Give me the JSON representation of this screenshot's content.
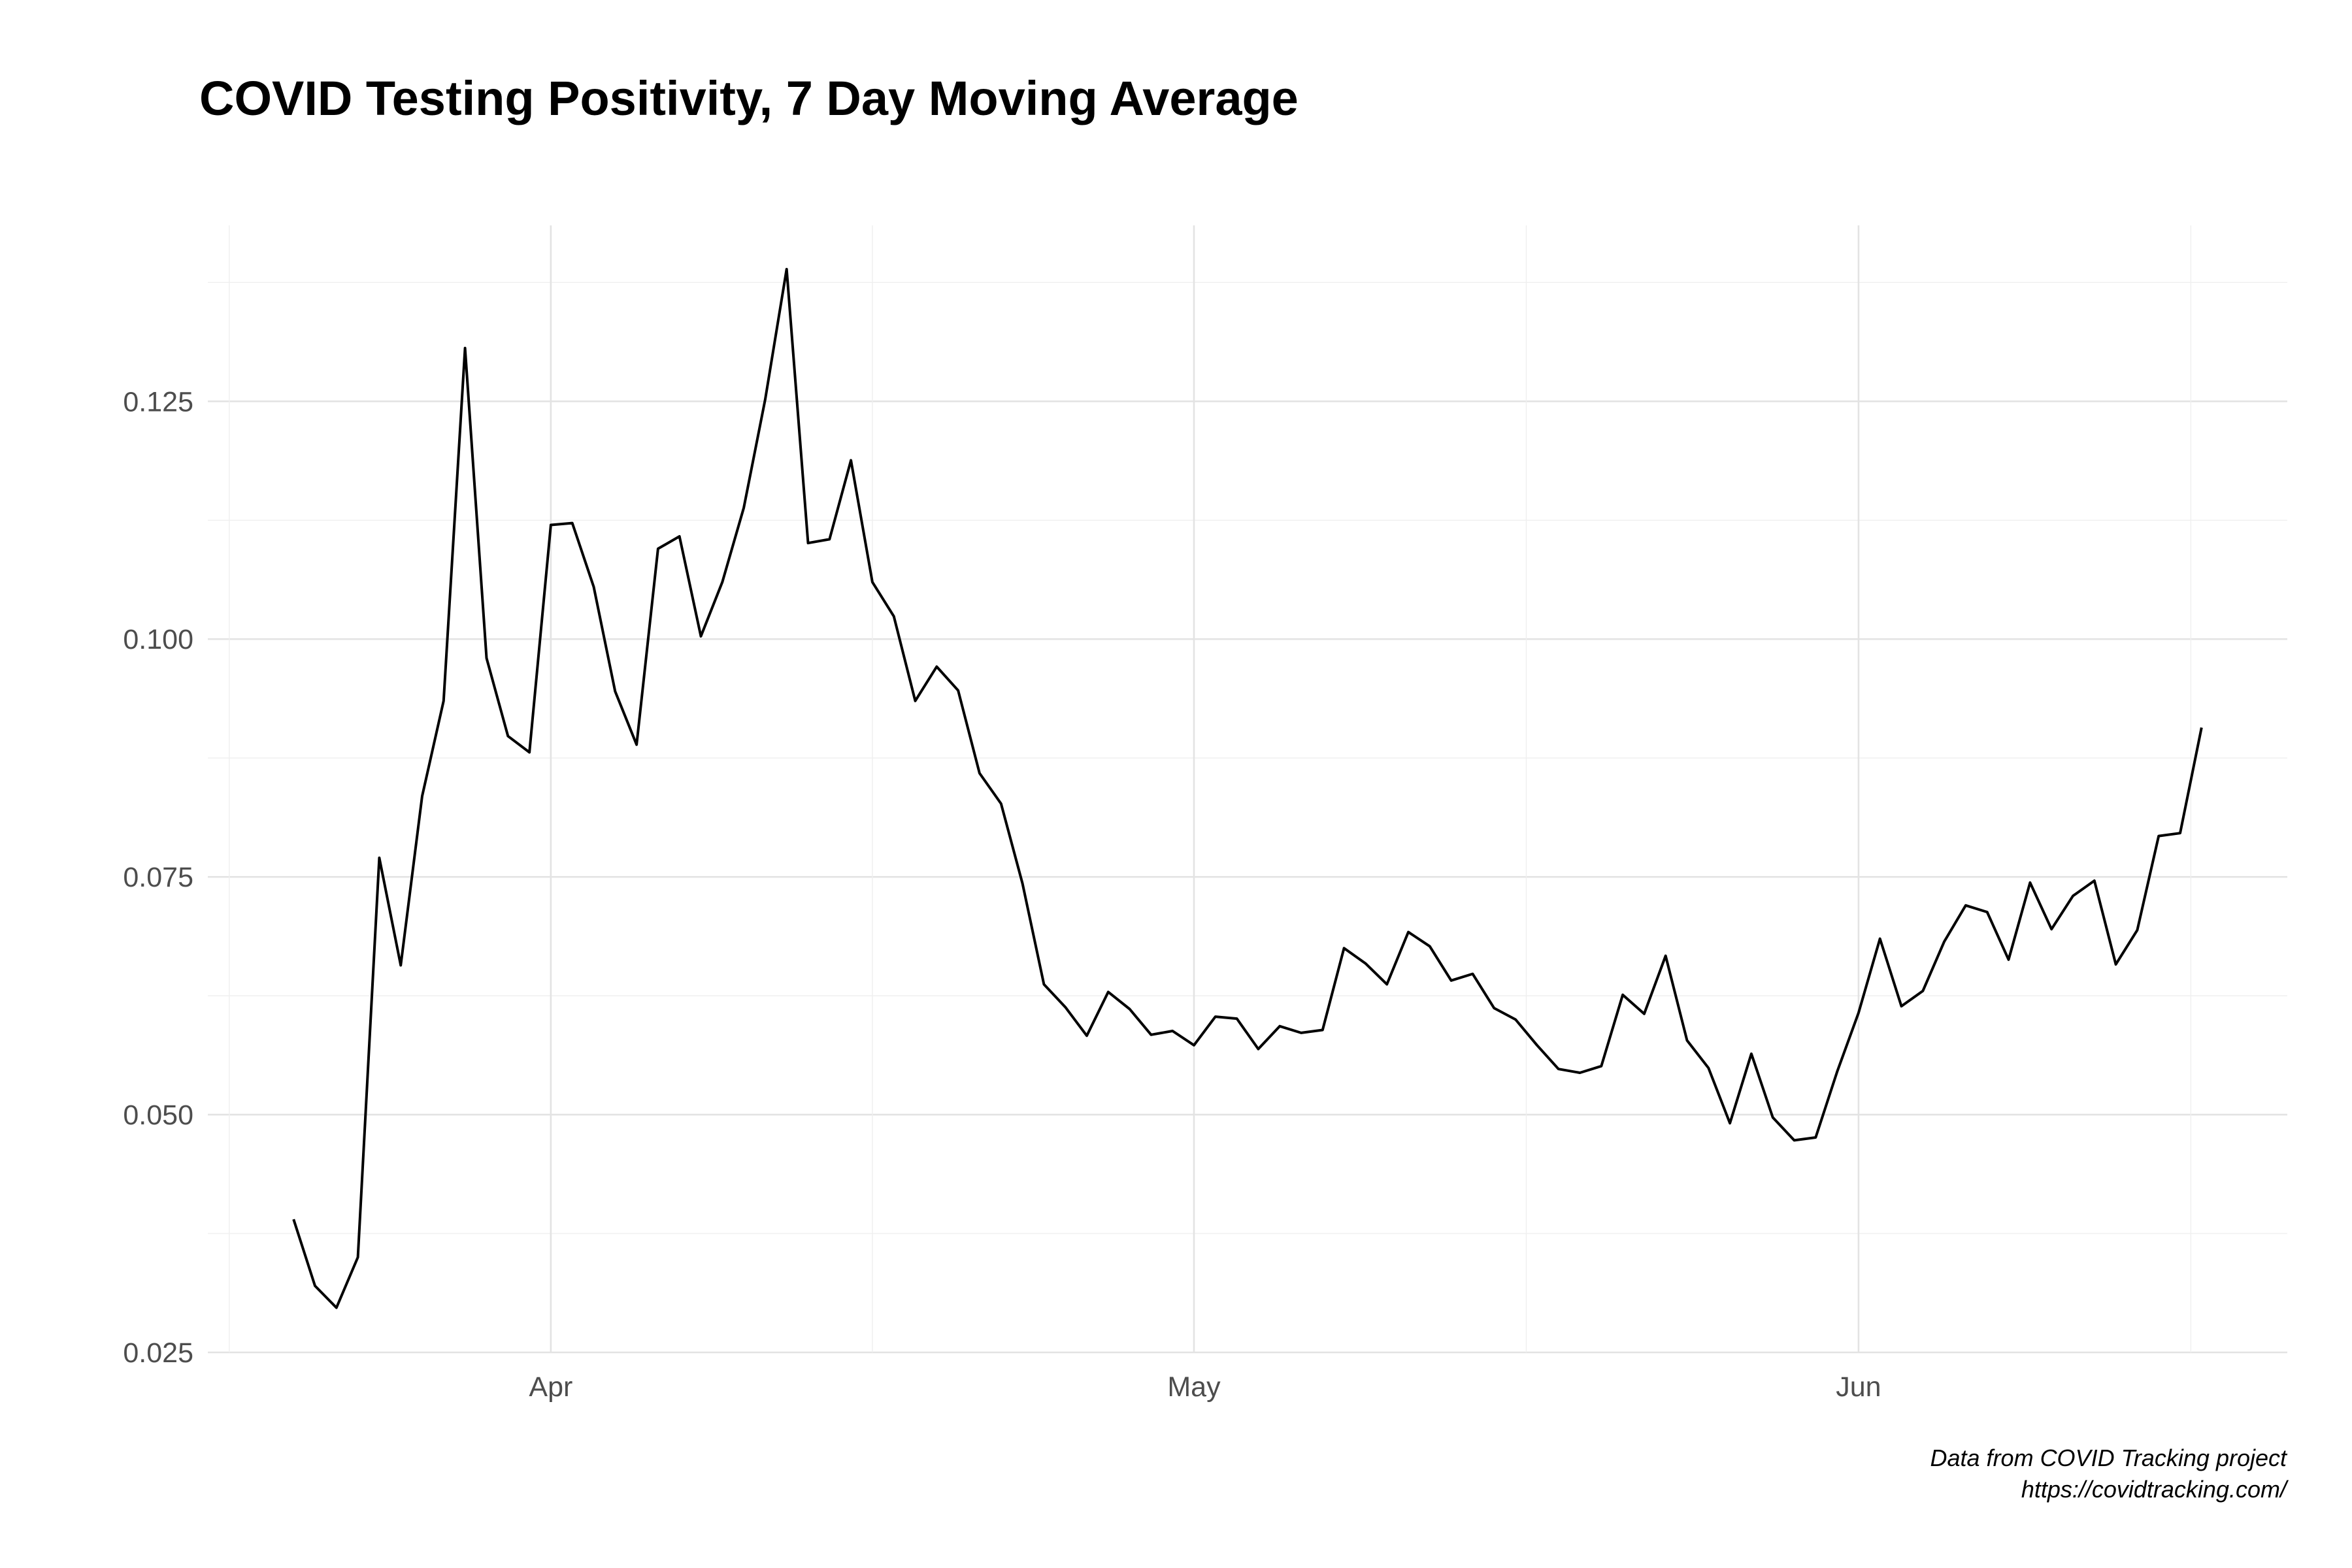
{
  "chart_data": {
    "type": "line",
    "title": "COVID Testing Positivity, 7 Day Moving Average",
    "xlabel": "",
    "ylabel": "",
    "grid": true,
    "x_axis": {
      "type": "date",
      "range": [
        "2020-03-16",
        "2020-06-21"
      ],
      "ticks": [
        {
          "date": "2020-04-01",
          "label": "Apr"
        },
        {
          "date": "2020-05-01",
          "label": "May"
        },
        {
          "date": "2020-06-01",
          "label": "Jun"
        }
      ]
    },
    "y_axis": {
      "range": [
        0.025,
        0.1435
      ],
      "ticks": [
        {
          "value": 0.025,
          "label": "0.025"
        },
        {
          "value": 0.05,
          "label": "0.050"
        },
        {
          "value": 0.075,
          "label": "0.075"
        },
        {
          "value": 0.1,
          "label": "0.100"
        },
        {
          "value": 0.125,
          "label": "0.125"
        }
      ]
    },
    "series": [
      {
        "color": "#000000",
        "x_start": "2020-03-20",
        "step_days": 1,
        "values": [
          0.039,
          0.032,
          0.0297,
          0.035,
          0.077,
          0.0657,
          0.0835,
          0.0935,
          0.1306,
          0.098,
          0.0898,
          0.0881,
          0.112,
          0.1122,
          0.1055,
          0.0945,
          0.0889,
          0.1095,
          0.1108,
          0.1003,
          0.106,
          0.1138,
          0.1252,
          0.1389,
          0.1101,
          0.1105,
          0.1188,
          0.106,
          0.1024,
          0.0935,
          0.0971,
          0.0946,
          0.0859,
          0.0827,
          0.0743,
          0.0637,
          0.0613,
          0.0583,
          0.0629,
          0.0611,
          0.0584,
          0.0588,
          0.0573,
          0.0603,
          0.0601,
          0.0569,
          0.0593,
          0.0586,
          0.0589,
          0.0675,
          0.0659,
          0.0637,
          0.0692,
          0.0677,
          0.0641,
          0.0648,
          0.0612,
          0.06,
          0.0573,
          0.0548,
          0.0544,
          0.0551,
          0.0626,
          0.0606,
          0.0667,
          0.0578,
          0.0549,
          0.0491,
          0.0564,
          0.0497,
          0.0473,
          0.0476,
          0.0545,
          0.0607,
          0.0685,
          0.0614,
          0.063,
          0.0682,
          0.072,
          0.0713,
          0.0663,
          0.0744,
          0.0695,
          0.073,
          0.0746,
          0.0658,
          0.0694,
          0.0793,
          0.0796,
          0.0907
        ]
      }
    ]
  },
  "caption": {
    "line1": "Data from COVID Tracking project",
    "line2": "https://covidtracking.com/"
  }
}
